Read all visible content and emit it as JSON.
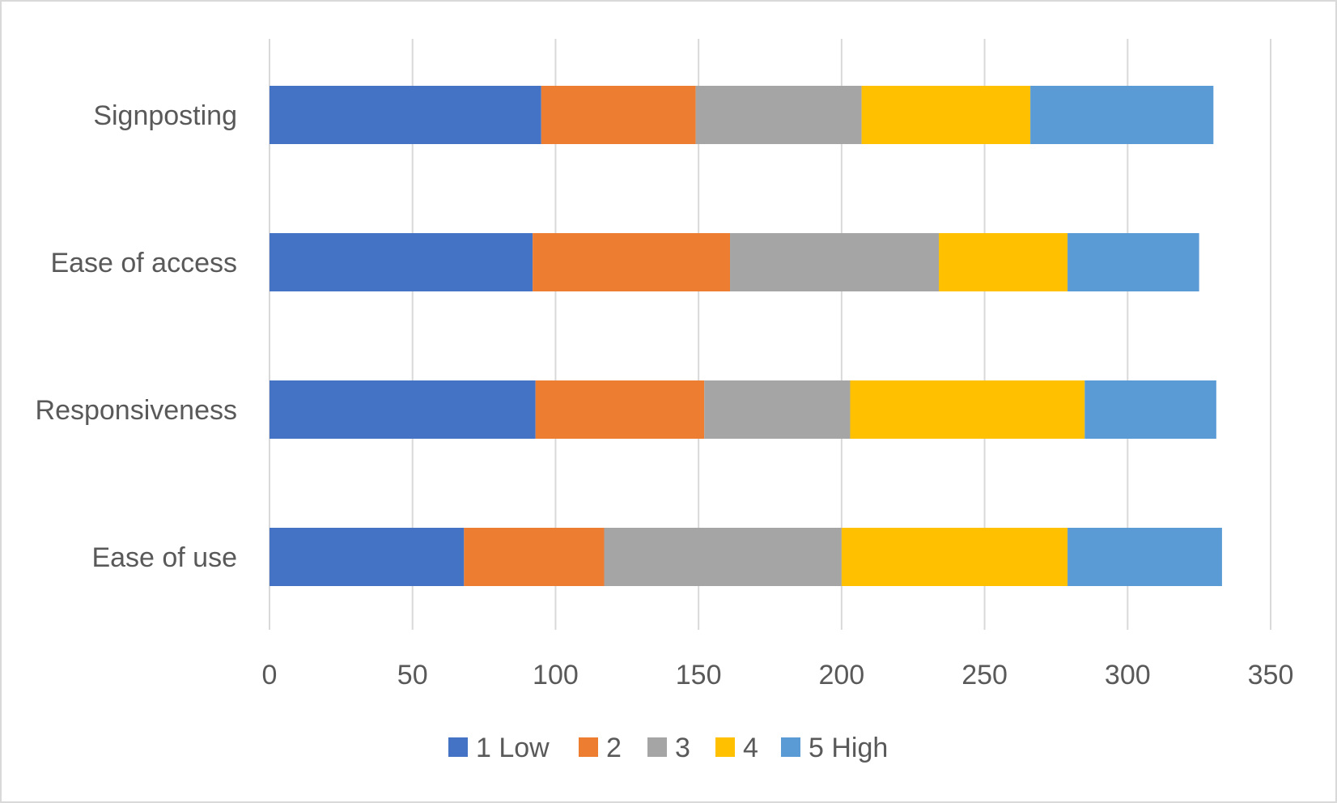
{
  "chart_data": {
    "type": "bar",
    "orientation": "horizontal",
    "stacked": true,
    "categories": [
      "Signposting",
      "Ease of access",
      "Responsiveness",
      "Ease of use"
    ],
    "series": [
      {
        "name": "1 Low",
        "color": "#4472C4",
        "values": [
          95,
          92,
          93,
          68
        ]
      },
      {
        "name": "2",
        "color": "#ED7D31",
        "values": [
          54,
          69,
          59,
          49
        ]
      },
      {
        "name": "3",
        "color": "#A5A5A5",
        "values": [
          58,
          73,
          51,
          83
        ]
      },
      {
        "name": "4",
        "color": "#FFC000",
        "values": [
          59,
          45,
          82,
          79
        ]
      },
      {
        "name": "5 High",
        "color": "#5B9BD5",
        "values": [
          64,
          46,
          46,
          54
        ]
      }
    ],
    "xticks": [
      "0",
      "50",
      "100",
      "150",
      "200",
      "250",
      "300",
      "350"
    ],
    "xlim": [
      0,
      350
    ],
    "grid": true,
    "legend_position": "bottom",
    "title": "",
    "xlabel": "",
    "ylabel": ""
  }
}
